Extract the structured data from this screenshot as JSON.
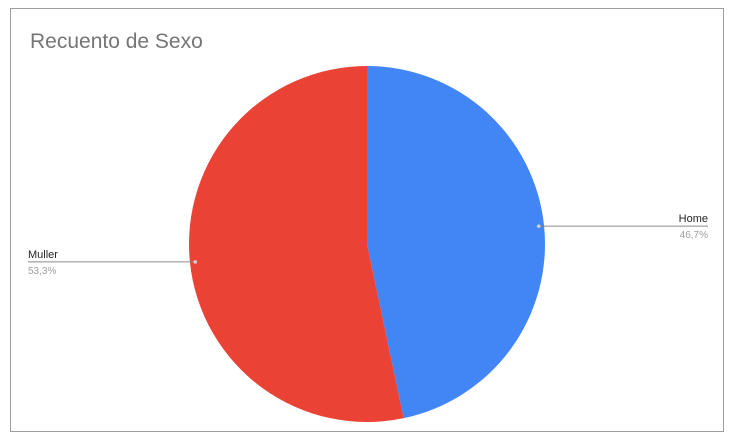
{
  "chart_data": {
    "type": "pie",
    "title": "Recuento de Sexo",
    "slices": [
      {
        "label": "Home",
        "percent_label": "46,7%",
        "value": 46.7,
        "color": "#4285f4"
      },
      {
        "label": "Muller",
        "percent_label": "53,3%",
        "value": 53.3,
        "color": "#ea4335"
      }
    ],
    "legend": "none",
    "data_labels": "outside-with-leader-lines"
  }
}
